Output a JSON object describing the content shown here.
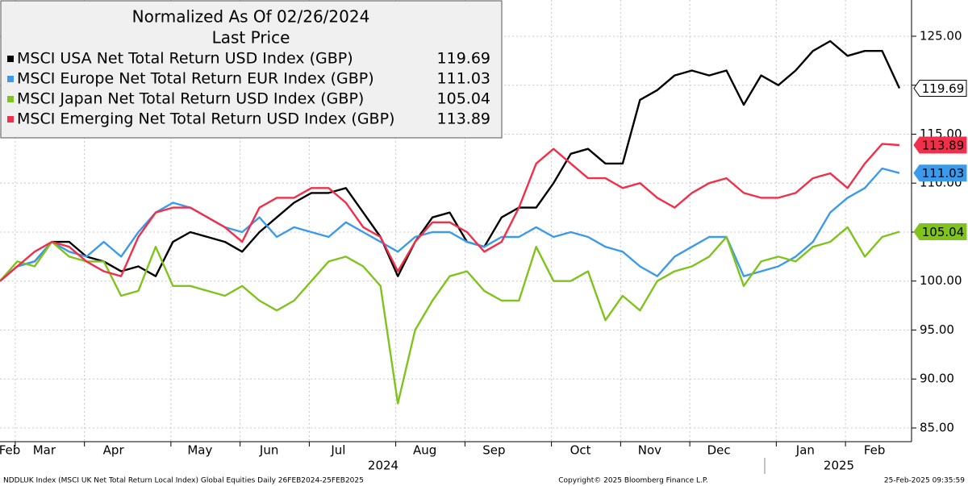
{
  "chart_data": {
    "type": "line",
    "legend_title": "Normalized As Of 02/26/2024",
    "legend_subtitle": "Last Price",
    "categories": [
      "Feb",
      null,
      "Mar",
      null,
      null,
      null,
      "Apr",
      null,
      null,
      null,
      null,
      "May",
      null,
      null,
      null,
      "Jun",
      null,
      null,
      null,
      "Jul",
      null,
      null,
      null,
      null,
      "Aug",
      null,
      null,
      null,
      "Sep",
      null,
      null,
      null,
      null,
      "Oct",
      null,
      null,
      null,
      "Nov",
      null,
      null,
      null,
      "Dec",
      null,
      null,
      null,
      null,
      "Jan",
      null,
      null,
      null,
      "Feb",
      null,
      null
    ],
    "year_labels": [
      "2024",
      "2025"
    ],
    "series": [
      {
        "name": "MSCI USA Net Total Return USD Index (GBP)",
        "color": "#000000",
        "last_value": 119.69,
        "values": [
          100,
          101.5,
          102,
          104,
          104,
          102.5,
          102,
          101,
          101.5,
          100.5,
          104,
          105,
          104.5,
          104,
          103,
          105,
          106.5,
          108,
          109,
          109,
          109.5,
          107,
          104.5,
          100.5,
          104,
          106.5,
          107,
          104,
          103.5,
          106.5,
          107.5,
          107.5,
          110,
          113,
          113.5,
          112,
          112,
          118.5,
          119.5,
          121,
          121.5,
          121,
          121.5,
          118,
          121,
          120,
          121.5,
          123.5,
          124.5,
          123,
          123.5,
          123.5,
          119.69
        ]
      },
      {
        "name": "MSCI Europe Net Total Return EUR Index (GBP)",
        "color": "#3b9bea",
        "last_value": 111.03,
        "values": [
          100,
          101.5,
          102,
          104,
          103,
          102.5,
          104,
          102.5,
          105,
          107,
          108,
          107.5,
          106.5,
          105.5,
          105,
          106.5,
          104.5,
          105.5,
          105,
          104.5,
          106,
          105,
          104,
          103,
          104.5,
          105,
          105,
          104,
          103.5,
          104.5,
          104.5,
          105.5,
          104.5,
          105,
          104.5,
          103.5,
          103,
          101.5,
          100.5,
          102.5,
          103.5,
          104.5,
          104.5,
          100.5,
          101,
          101.5,
          102.5,
          104,
          107,
          108.5,
          109.5,
          111.5,
          111.03
        ]
      },
      {
        "name": "MSCI Japan Net Total Return USD Index (GBP)",
        "color": "#7fc31c",
        "last_value": 105.04,
        "values": [
          100,
          102,
          101.5,
          104,
          102.5,
          102,
          102,
          98.5,
          99,
          103.5,
          99.5,
          99.5,
          99,
          98.5,
          99.5,
          98,
          97,
          98,
          100,
          102,
          102.5,
          101.5,
          99.5,
          87.5,
          95,
          98,
          100.5,
          101,
          99,
          98,
          98,
          103.5,
          100,
          100,
          101,
          96,
          98.5,
          97,
          100,
          101,
          101.5,
          102.5,
          104.5,
          99.5,
          102,
          102.5,
          102,
          103.5,
          104,
          105.5,
          102.5,
          104.5,
          105.04
        ]
      },
      {
        "name": "MSCI Emerging Net Total Return USD Index (GBP)",
        "color": "#f0304a",
        "last_value": 113.89,
        "values": [
          100,
          101.5,
          103,
          104,
          103.5,
          102,
          101,
          100.5,
          104.5,
          107,
          107.5,
          107.5,
          106.5,
          105.5,
          104,
          107.5,
          108.5,
          108.5,
          109.5,
          109.5,
          108,
          105.5,
          104.5,
          101,
          104,
          106,
          106,
          105,
          103,
          104,
          107.5,
          112,
          113.5,
          112,
          110.5,
          110.5,
          109.5,
          110,
          108.5,
          107.5,
          109,
          110,
          110.5,
          109,
          108.5,
          108.5,
          109,
          110.5,
          111,
          109.5,
          112,
          114,
          113.89
        ]
      }
    ],
    "ylim": [
      83.6,
      128.7
    ],
    "yticks": [
      {
        "value": 85,
        "label": "85.00"
      },
      {
        "value": 90,
        "label": "90.00"
      },
      {
        "value": 95,
        "label": "95.00"
      },
      {
        "value": 100,
        "label": "100.00"
      },
      {
        "value": 105,
        "label": "105.00"
      },
      {
        "value": 110,
        "label": "110.00"
      },
      {
        "value": 115,
        "label": "115.00"
      },
      {
        "value": 120,
        "label": "120.00"
      },
      {
        "value": 125,
        "label": "125.00"
      }
    ],
    "grid": true,
    "footer": {
      "left": "NDDLUK Index (MSCI UK Net Total Return Local Index) Global Equities  Daily 26FEB2024-25FEB2025",
      "center": "Copyright© 2025 Bloomberg Finance L.P.",
      "right": "25-Feb-2025 09:35:59"
    }
  }
}
